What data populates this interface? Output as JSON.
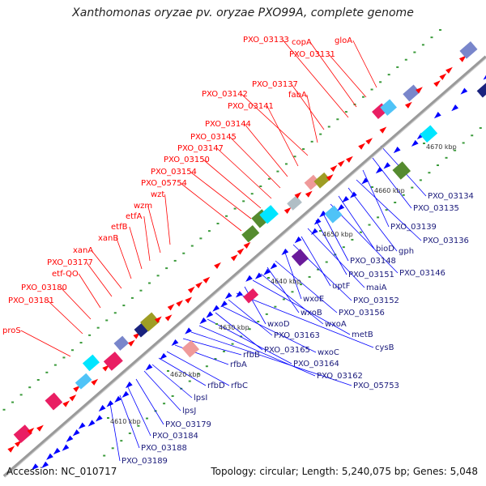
{
  "title": "Xanthomonas oryzae pv. oryzae PXO99A, complete genome",
  "footer": {
    "accession": "Accession: NC_010717",
    "summary": "Topology: circular; Length: 5,240,075 bp; Genes: 5,048"
  },
  "colors": {
    "backbone": "#9a9a9a",
    "red_label": "#ff0000",
    "blue_label": "#0000ff",
    "forward_arrow": "#ff0000",
    "reverse_arrow": "#0000ff"
  },
  "kbp_ticks": [
    "4610 kbp",
    "4620 kbp",
    "4630 kbp",
    "4640 kbp",
    "4650 kbp",
    "4660 kbp",
    "4670 kbp"
  ],
  "red_labels": [
    "proS",
    "PXO_03181",
    "PXO_03180",
    "etf-QO",
    "PXO_03177",
    "xanA",
    "xanB",
    "etfB",
    "etfA",
    "wzm",
    "wzt",
    "PXO_05754",
    "PXO_03154",
    "PXO_03150",
    "PXO_03147",
    "PXO_03145",
    "PXO_03144",
    "PXO_03141",
    "PXO_03142",
    "fabA",
    "PXO_03137",
    "PXO_03133",
    "copA",
    "PXO_03131",
    "gloA"
  ],
  "blue_labels": [
    "PXO_03134",
    "PXO_03135",
    "PXO_03139",
    "PXO_03136",
    "gph",
    "bioD",
    "PXO_03146",
    "PXO_03148",
    "PXO_03151",
    "maiA",
    "uptF",
    "PXO_03152",
    "wxoE",
    "PXO_03156",
    "wxoB",
    "wxoA",
    "metB",
    "wxoD",
    "cysB",
    "PXO_03163",
    "wxoC",
    "PXO_03165",
    "PXO_03164",
    "PXO_03162",
    "PXO_05753",
    "rfbB",
    "rfbA",
    "rfbC",
    "rfbD",
    "lpsI",
    "lpsJ",
    "PXO_03179",
    "PXO_03184",
    "PXO_03188",
    "PXO_03189"
  ]
}
